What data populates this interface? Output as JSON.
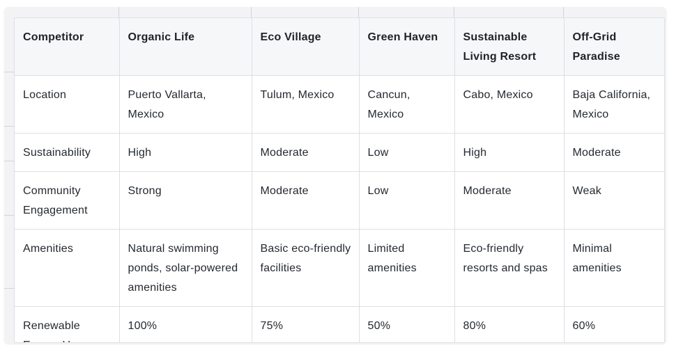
{
  "table": {
    "headers": [
      "Competitor",
      "Organic Life",
      "Eco Village",
      "Green Haven",
      "Sustainable Living Resort",
      "Off-Grid Paradise"
    ],
    "rows": [
      [
        "Location",
        "Puerto Vallarta, Mexico",
        "Tulum, Mexico",
        "Cancun, Mexico",
        "Cabo, Mexico",
        "Baja California, Mexico"
      ],
      [
        "Sustainability",
        "High",
        "Moderate",
        "Low",
        "High",
        "Moderate"
      ],
      [
        "Community Engagement",
        "Strong",
        "Moderate",
        "Low",
        "Moderate",
        "Weak"
      ],
      [
        "Amenities",
        "Natural swimming ponds, solar-powered amenities",
        "Basic eco-friendly facilities",
        "Limited amenities",
        "Eco-friendly resorts and spas",
        "Minimal amenities"
      ],
      [
        "Renewable Energy Use",
        "100%",
        "75%",
        "50%",
        "80%",
        "60%"
      ]
    ]
  },
  "colors": {
    "header_bg": "#f6f7f8",
    "border": "#dcdfe3",
    "frame_bg": "#f3f3f5"
  }
}
